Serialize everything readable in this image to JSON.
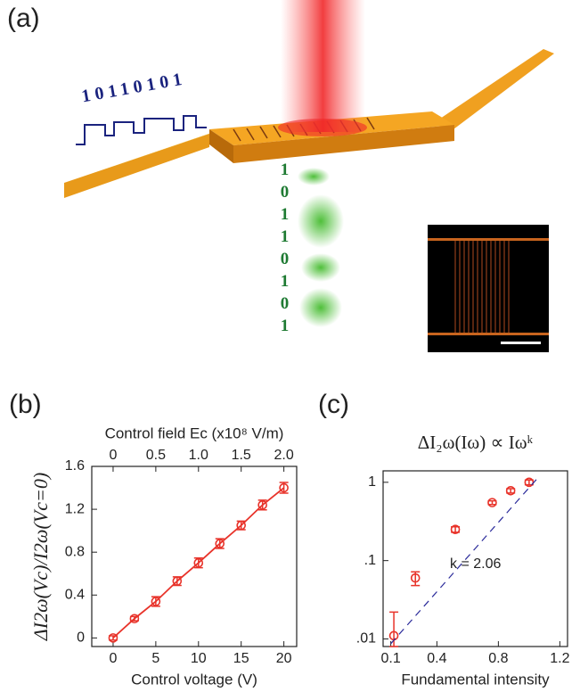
{
  "figure": {
    "panel_a": {
      "label": "(a)",
      "input_bits": "10110101",
      "output_bits": "10110101"
    }
  },
  "chart_data": [
    {
      "type": "line",
      "panel_label": "(b)",
      "xlabel": "Control voltage (V)",
      "ylabel": "ΔI2ω(Vc)/I2ω(Vc=0)",
      "x2label": "Control field Ec (x10⁸ V/m)",
      "x": [
        0,
        2.5,
        5,
        7.5,
        10,
        12.5,
        15,
        17.5,
        20
      ],
      "series": [
        {
          "color": "#e8332a",
          "style": "line-markers",
          "values": [
            0,
            0.18,
            0.34,
            0.53,
            0.7,
            0.88,
            1.05,
            1.24,
            1.4
          ],
          "errors": [
            0.02,
            0.02,
            0.045,
            0.04,
            0.045,
            0.045,
            0.04,
            0.045,
            0.05
          ]
        }
      ],
      "xlim": [
        -2.5,
        21.5
      ],
      "xticks": [
        0,
        5,
        10,
        15,
        20
      ],
      "ylim": [
        -0.08,
        1.6
      ],
      "yticks": [
        0,
        0.4,
        0.8,
        1.2,
        1.6
      ],
      "x2lim": [
        -0.25,
        2.15
      ],
      "x2ticks": [
        0,
        0.5,
        {
          "value": 1,
          "label": "1.0"
        },
        1.5,
        {
          "value": 2,
          "label": "2.0"
        }
      ]
    },
    {
      "type": "scatter",
      "panel_label": "(c)",
      "title": "ΔI₂ω(Iω) ∝ Iωᵏ",
      "xlabel": "Fundamental intensity",
      "annotation": "k = 2.06",
      "ylog": true,
      "series": [
        {
          "color": "#e8332a",
          "style": "markers",
          "x": [
            0.12,
            0.26,
            0.52,
            0.76,
            0.88,
            1.0
          ],
          "values": [
            0.011,
            0.06,
            0.25,
            0.55,
            0.78,
            1.0
          ],
          "errors": [
            0.011,
            0.012,
            0.02,
            0.03,
            0.05,
            0.07
          ]
        },
        {
          "color": "#2a2a9a",
          "style": "dashed-line",
          "x": [
            0.1,
            1.05
          ],
          "values": [
            0.0087,
            1.1
          ]
        }
      ],
      "xlim": [
        0.05,
        1.25
      ],
      "xticks": [
        0.1,
        0.4,
        0.8,
        1.2
      ],
      "ylim": [
        0.008,
        1.4
      ],
      "yticks": [
        {
          "value": 0.01,
          "label": ".01"
        },
        {
          "value": 0.1,
          "label": ".1"
        },
        1
      ]
    }
  ]
}
